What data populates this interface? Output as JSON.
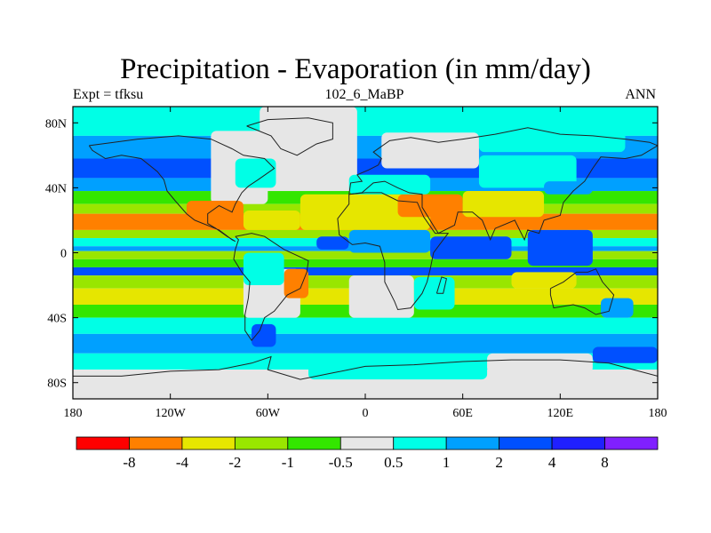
{
  "title": "Precipitation - Evaporation (in mm/day)",
  "subtitle_left": "Expt = tfksu",
  "subtitle_center": "102_6_MaBP",
  "subtitle_right": "ANN",
  "chart_data": {
    "type": "heatmap",
    "title": "Precipitation - Evaporation (in mm/day)",
    "xlabel": "",
    "ylabel": "",
    "xlim": [
      -180,
      180
    ],
    "ylim": [
      -90,
      90
    ],
    "x_ticks": [
      {
        "value": -180,
        "label": "180"
      },
      {
        "value": -120,
        "label": "120W"
      },
      {
        "value": -60,
        "label": "60W"
      },
      {
        "value": 0,
        "label": "0"
      },
      {
        "value": 60,
        "label": "60E"
      },
      {
        "value": 120,
        "label": "120E"
      },
      {
        "value": 180,
        "label": "180"
      }
    ],
    "y_ticks": [
      {
        "value": 80,
        "label": "80N"
      },
      {
        "value": 40,
        "label": "40N"
      },
      {
        "value": 0,
        "label": "0"
      },
      {
        "value": -40,
        "label": "40S"
      },
      {
        "value": -80,
        "label": "80S"
      }
    ],
    "colorbar": {
      "colors": [
        "#ff0000",
        "#ff8000",
        "#e6e600",
        "#99e600",
        "#33e600",
        "#e6e6e6",
        "#00ffe6",
        "#00a0ff",
        "#0050ff",
        "#2020ff",
        "#8020ff"
      ],
      "boundaries": [
        "-8",
        "-4",
        "-2",
        "-1",
        "-0.5",
        "0.5",
        "1",
        "2",
        "4",
        "8"
      ]
    },
    "zonal_bands": [
      {
        "lat": [
          72,
          90
        ],
        "level": 6
      },
      {
        "lat": [
          58,
          72
        ],
        "level": 7
      },
      {
        "lat": [
          46,
          58
        ],
        "level": 8
      },
      {
        "lat": [
          38,
          46
        ],
        "level": 7
      },
      {
        "lat": [
          30,
          38
        ],
        "level": 4
      },
      {
        "lat": [
          24,
          30
        ],
        "level": 3
      },
      {
        "lat": [
          14,
          24
        ],
        "level": 1
      },
      {
        "lat": [
          9,
          14
        ],
        "level": 3
      },
      {
        "lat": [
          4,
          9
        ],
        "level": 6
      },
      {
        "lat": [
          1,
          4
        ],
        "level": 7
      },
      {
        "lat": [
          -4,
          1
        ],
        "level": 3
      },
      {
        "lat": [
          -9,
          -4
        ],
        "level": 4
      },
      {
        "lat": [
          -14,
          -9
        ],
        "level": 8
      },
      {
        "lat": [
          -22,
          -14
        ],
        "level": 3
      },
      {
        "lat": [
          -32,
          -22
        ],
        "level": 2
      },
      {
        "lat": [
          -40,
          -32
        ],
        "level": 4
      },
      {
        "lat": [
          -50,
          -40
        ],
        "level": 6
      },
      {
        "lat": [
          -62,
          -50
        ],
        "level": 7
      },
      {
        "lat": [
          -72,
          -62
        ],
        "level": 6
      },
      {
        "lat": [
          -90,
          -72
        ],
        "level": 5
      }
    ],
    "patches": [
      {
        "lon": [
          -65,
          -5
        ],
        "lat": [
          38,
          90
        ],
        "level": 5
      },
      {
        "lon": [
          -95,
          -60
        ],
        "lat": [
          30,
          75
        ],
        "level": 5
      },
      {
        "lon": [
          -40,
          -22
        ],
        "lat": [
          60,
          84
        ],
        "level": 5
      },
      {
        "lon": [
          -80,
          -55
        ],
        "lat": [
          40,
          58
        ],
        "level": 6
      },
      {
        "lon": [
          -110,
          -75
        ],
        "lat": [
          16,
          32
        ],
        "level": 1
      },
      {
        "lon": [
          -75,
          -40
        ],
        "lat": [
          14,
          26
        ],
        "level": 2
      },
      {
        "lon": [
          -40,
          40
        ],
        "lat": [
          14,
          36
        ],
        "level": 2
      },
      {
        "lon": [
          20,
          60
        ],
        "lat": [
          22,
          36
        ],
        "level": 1
      },
      {
        "lon": [
          60,
          110
        ],
        "lat": [
          22,
          38
        ],
        "level": 2
      },
      {
        "lon": [
          -10,
          40
        ],
        "lat": [
          36,
          48
        ],
        "level": 6
      },
      {
        "lon": [
          70,
          130
        ],
        "lat": [
          40,
          60
        ],
        "level": 6
      },
      {
        "lon": [
          110,
          140
        ],
        "lat": [
          36,
          44
        ],
        "level": 7
      },
      {
        "lon": [
          10,
          70
        ],
        "lat": [
          52,
          74
        ],
        "level": 5
      },
      {
        "lon": [
          70,
          160
        ],
        "lat": [
          62,
          82
        ],
        "level": 6
      },
      {
        "lon": [
          -10,
          40
        ],
        "lat": [
          0,
          14
        ],
        "level": 7
      },
      {
        "lon": [
          -30,
          -10
        ],
        "lat": [
          2,
          10
        ],
        "level": 8
      },
      {
        "lon": [
          40,
          90
        ],
        "lat": [
          -4,
          10
        ],
        "level": 8
      },
      {
        "lon": [
          100,
          140
        ],
        "lat": [
          -8,
          14
        ],
        "level": 8
      },
      {
        "lon": [
          -75,
          -40
        ],
        "lat": [
          -40,
          -10
        ],
        "level": 5
      },
      {
        "lon": [
          -50,
          -35
        ],
        "lat": [
          -28,
          -10
        ],
        "level": 1
      },
      {
        "lon": [
          -75,
          -50
        ],
        "lat": [
          -20,
          0
        ],
        "level": 6
      },
      {
        "lon": [
          -10,
          30
        ],
        "lat": [
          -40,
          -14
        ],
        "level": 5
      },
      {
        "lon": [
          30,
          55
        ],
        "lat": [
          -35,
          -15
        ],
        "level": 6
      },
      {
        "lon": [
          90,
          130
        ],
        "lat": [
          -22,
          -12
        ],
        "level": 2
      },
      {
        "lon": [
          145,
          165
        ],
        "lat": [
          -40,
          -28
        ],
        "level": 7
      },
      {
        "lon": [
          -70,
          -55
        ],
        "lat": [
          -58,
          -44
        ],
        "level": 8
      },
      {
        "lon": [
          -35,
          75
        ],
        "lat": [
          -78,
          -62
        ],
        "level": 6
      },
      {
        "lon": [
          75,
          140
        ],
        "lat": [
          -74,
          -62
        ],
        "level": 5
      },
      {
        "lon": [
          140,
          180
        ],
        "lat": [
          -68,
          -58
        ],
        "level": 8
      }
    ],
    "land_outlines": [
      [
        [
          -170,
          66
        ],
        [
          -140,
          70
        ],
        [
          -115,
          72
        ],
        [
          -95,
          70
        ],
        [
          -82,
          64
        ],
        [
          -75,
          60
        ],
        [
          -62,
          58
        ],
        [
          -56,
          52
        ],
        [
          -66,
          45
        ],
        [
          -72,
          41
        ],
        [
          -76,
          37
        ],
        [
          -80,
          30
        ],
        [
          -82,
          25
        ],
        [
          -90,
          29
        ],
        [
          -97,
          24
        ],
        [
          -97,
          18
        ],
        [
          -92,
          15
        ],
        [
          -85,
          10
        ],
        [
          -80,
          7
        ],
        [
          -82,
          8
        ],
        [
          -90,
          14
        ],
        [
          -105,
          20
        ],
        [
          -110,
          24
        ],
        [
          -117,
          32
        ],
        [
          -122,
          38
        ],
        [
          -124,
          45
        ],
        [
          -128,
          50
        ],
        [
          -138,
          58
        ],
        [
          -150,
          60
        ],
        [
          -160,
          58
        ],
        [
          -168,
          63
        ],
        [
          -170,
          66
        ]
      ],
      [
        [
          -80,
          10
        ],
        [
          -70,
          12
        ],
        [
          -62,
          10
        ],
        [
          -50,
          2
        ],
        [
          -35,
          -5
        ],
        [
          -36,
          -12
        ],
        [
          -40,
          -22
        ],
        [
          -48,
          -26
        ],
        [
          -56,
          -36
        ],
        [
          -62,
          -40
        ],
        [
          -65,
          -48
        ],
        [
          -70,
          -54
        ],
        [
          -74,
          -48
        ],
        [
          -74,
          -38
        ],
        [
          -72,
          -28
        ],
        [
          -71,
          -18
        ],
        [
          -76,
          -12
        ],
        [
          -81,
          -4
        ],
        [
          -80,
          2
        ],
        [
          -78,
          8
        ],
        [
          -80,
          10
        ]
      ],
      [
        [
          -10,
          36
        ],
        [
          0,
          37
        ],
        [
          10,
          37
        ],
        [
          20,
          32
        ],
        [
          32,
          31
        ],
        [
          36,
          22
        ],
        [
          43,
          12
        ],
        [
          51,
          12
        ],
        [
          42,
          0
        ],
        [
          40,
          -10
        ],
        [
          38,
          -18
        ],
        [
          35,
          -25
        ],
        [
          28,
          -34
        ],
        [
          20,
          -35
        ],
        [
          18,
          -30
        ],
        [
          12,
          -18
        ],
        [
          12,
          -6
        ],
        [
          9,
          4
        ],
        [
          0,
          6
        ],
        [
          -8,
          5
        ],
        [
          -16,
          11
        ],
        [
          -17,
          21
        ],
        [
          -10,
          30
        ],
        [
          -10,
          36
        ]
      ],
      [
        [
          -10,
          36
        ],
        [
          -9,
          43
        ],
        [
          -2,
          44
        ],
        [
          -5,
          48
        ],
        [
          2,
          51
        ],
        [
          8,
          54
        ],
        [
          10,
          58
        ],
        [
          5,
          62
        ],
        [
          15,
          69
        ],
        [
          28,
          71
        ],
        [
          45,
          68
        ],
        [
          60,
          70
        ],
        [
          80,
          73
        ],
        [
          100,
          77
        ],
        [
          120,
          73
        ],
        [
          140,
          72
        ],
        [
          160,
          70
        ],
        [
          175,
          68
        ],
        [
          180,
          66
        ],
        [
          170,
          60
        ],
        [
          160,
          58
        ],
        [
          145,
          59
        ],
        [
          140,
          52
        ],
        [
          135,
          44
        ],
        [
          128,
          38
        ],
        [
          122,
          31
        ],
        [
          120,
          23
        ],
        [
          110,
          20
        ],
        [
          107,
          12
        ],
        [
          100,
          14
        ],
        [
          98,
          8
        ],
        [
          92,
          20
        ],
        [
          80,
          15
        ],
        [
          77,
          8
        ],
        [
          72,
          20
        ],
        [
          66,
          25
        ],
        [
          57,
          25
        ],
        [
          55,
          17
        ],
        [
          45,
          12
        ],
        [
          43,
          15
        ],
        [
          35,
          28
        ],
        [
          35,
          36
        ],
        [
          27,
          37
        ],
        [
          20,
          40
        ],
        [
          12,
          44
        ],
        [
          5,
          43
        ],
        [
          -2,
          37
        ],
        [
          -10,
          36
        ]
      ],
      [
        [
          114,
          -22
        ],
        [
          122,
          -18
        ],
        [
          130,
          -12
        ],
        [
          137,
          -12
        ],
        [
          142,
          -10
        ],
        [
          146,
          -18
        ],
        [
          153,
          -26
        ],
        [
          150,
          -36
        ],
        [
          142,
          -38
        ],
        [
          135,
          -34
        ],
        [
          128,
          -32
        ],
        [
          116,
          -34
        ],
        [
          114,
          -26
        ],
        [
          114,
          -22
        ]
      ],
      [
        [
          -73,
          78
        ],
        [
          -60,
          82
        ],
        [
          -35,
          83
        ],
        [
          -20,
          80
        ],
        [
          -20,
          70
        ],
        [
          -30,
          67
        ],
        [
          -42,
          60
        ],
        [
          -52,
          64
        ],
        [
          -58,
          72
        ],
        [
          -73,
          78
        ]
      ],
      [
        [
          44,
          -25
        ],
        [
          47,
          -15
        ],
        [
          50,
          -16
        ],
        [
          48,
          -25
        ],
        [
          44,
          -25
        ]
      ],
      [
        [
          -180,
          -90
        ],
        [
          -180,
          -76
        ],
        [
          -150,
          -76
        ],
        [
          -120,
          -73
        ],
        [
          -90,
          -72
        ],
        [
          -70,
          -68
        ],
        [
          -58,
          -64
        ],
        [
          -60,
          -72
        ],
        [
          -40,
          -78
        ],
        [
          -20,
          -74
        ],
        [
          0,
          -70
        ],
        [
          30,
          -69
        ],
        [
          60,
          -67
        ],
        [
          90,
          -66
        ],
        [
          120,
          -66
        ],
        [
          150,
          -68
        ],
        [
          165,
          -72
        ],
        [
          180,
          -76
        ],
        [
          180,
          -90
        ]
      ]
    ]
  }
}
